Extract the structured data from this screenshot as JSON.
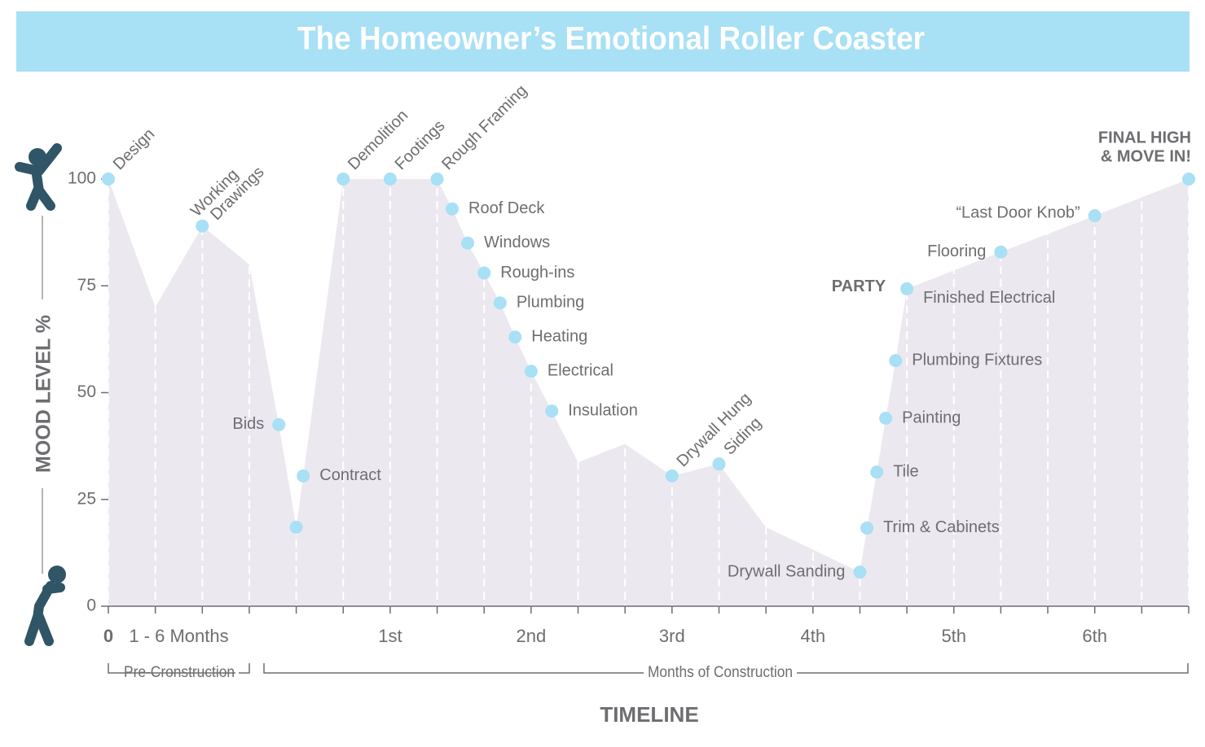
{
  "chart_data": {
    "type": "area",
    "title": "The Homeowner’s Emotional Roller Coaster",
    "y_label": "MOOD LEVEL %",
    "x_label": "TIMELINE",
    "ylim": [
      0,
      100
    ],
    "yticks": [
      0,
      25,
      50,
      75,
      100
    ],
    "xlim": [
      0,
      23
    ],
    "xticks": [
      {
        "value": 1.5,
        "label": "1 - 6 Months"
      },
      0,
      {
        "value": 6,
        "label": "1st"
      },
      {
        "value": 9,
        "label": "2nd"
      },
      {
        "value": 12,
        "label": "3rd"
      },
      {
        "value": 15,
        "label": "4th"
      },
      {
        "value": 18,
        "label": "5th"
      },
      {
        "value": 21,
        "label": "6th"
      }
    ],
    "xgrid": [
      0,
      1,
      2,
      3,
      4,
      5,
      6,
      7,
      8,
      9,
      10,
      11,
      12,
      13,
      14,
      15,
      16,
      17,
      18,
      19,
      20,
      21,
      22,
      23
    ],
    "color": "#ece8f0",
    "marker_color": "#a8e0f5",
    "x": [
      0,
      1,
      2,
      3,
      3.63,
      4,
      4.15,
      5,
      6,
      7,
      7.32,
      7.65,
      8,
      8.34,
      8.66,
      9,
      9.44,
      10,
      11,
      12,
      13,
      14,
      16,
      16.15,
      16.36,
      16.55,
      16.76,
      17,
      19,
      21,
      23
    ],
    "values": [
      100,
      70,
      89,
      80,
      42.5,
      18.5,
      30.5,
      100,
      100,
      100,
      93,
      85,
      78,
      71,
      63,
      55,
      45.7,
      33.7,
      38,
      30.5,
      33.3,
      18.5,
      8,
      18.3,
      31.4,
      44,
      57.5,
      74.3,
      82.9,
      91.4,
      100
    ],
    "markers": [
      true,
      false,
      true,
      false,
      true,
      true,
      true,
      true,
      true,
      true,
      true,
      true,
      true,
      true,
      true,
      true,
      true,
      false,
      false,
      true,
      true,
      false,
      true,
      true,
      true,
      true,
      true,
      true,
      true,
      true,
      true
    ],
    "point_labels": [
      "Design",
      null,
      "Working Drawings",
      null,
      "Bids",
      null,
      "Contract",
      "Demolition",
      "Footings",
      "Rough Framing",
      "Roof Deck",
      "Windows",
      "Rough-ins",
      "Plumbing",
      "Heating",
      "Electrical",
      "Insulation",
      null,
      null,
      "Drywall Hung",
      "Siding",
      null,
      "Drywall Sanding",
      "Trim & Cabinets",
      "Tile",
      "Painting",
      "Plumbing Fixtures",
      "Finished Electrical",
      "Flooring",
      "“Last Door Knob”",
      null
    ],
    "annotations": [
      "PARTY",
      "FINAL HIGH",
      "& MOVE IN!"
    ],
    "brackets": [
      "Pre-Cronstruction",
      "Months of Construction"
    ]
  }
}
